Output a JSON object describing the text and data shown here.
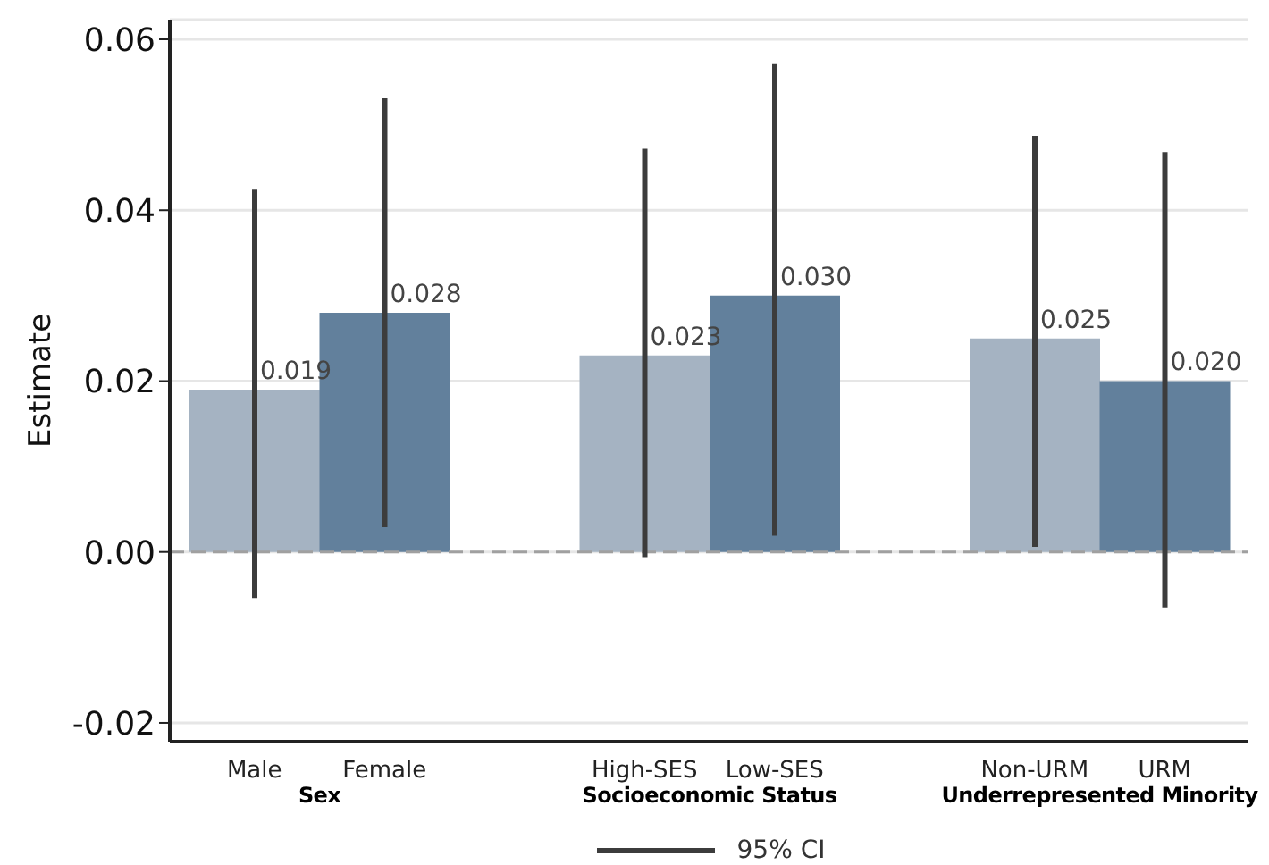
{
  "chart_data": {
    "type": "bar",
    "ylabel": "Estimate",
    "categories": [
      "Male",
      "Female",
      null,
      "High-SES",
      "Low-SES",
      null,
      "Non-URM",
      "URM"
    ],
    "series": [
      {
        "values": [
          0.019,
          0.028,
          null,
          0.023,
          0.03,
          null,
          0.025,
          0.02
        ],
        "colors": [
          "#a5b3c2",
          "#62809c",
          "#a5b3c2",
          "#a5b3c2",
          "#62809c",
          "#a5b3c2",
          "#a5b3c2",
          "#62809c"
        ],
        "errors": [
          [
            -0.0054,
            0.0424
          ],
          [
            0.0029,
            0.0531
          ],
          null,
          [
            -0.0006,
            0.0472
          ],
          [
            0.0019,
            0.0571
          ],
          null,
          [
            0.0006,
            0.0487
          ],
          [
            -0.0065,
            0.0468
          ]
        ]
      }
    ],
    "ylim": [
      -0.0222,
      0.0623
    ],
    "yticks": [
      {
        "value": -0.02,
        "label": "-0.02"
      },
      {
        "value": 0,
        "label": "0.00"
      },
      {
        "value": 0.02,
        "label": "0.02"
      },
      {
        "value": 0.04,
        "label": "0.04"
      },
      {
        "value": 0.06,
        "label": "0.06"
      }
    ],
    "value_labels": [
      "0.019",
      "0.028",
      null,
      "0.023",
      "0.030",
      null,
      "0.025",
      "0.020"
    ],
    "grid": "y",
    "ref_lines": [
      {
        "axis": "y",
        "value": 0,
        "color": "#a0a0a0",
        "line_style": "dashed"
      }
    ],
    "annotations": [
      "Sex",
      "Socioeconomic Status",
      "Underrepresented Minority",
      "95% CI"
    ]
  }
}
